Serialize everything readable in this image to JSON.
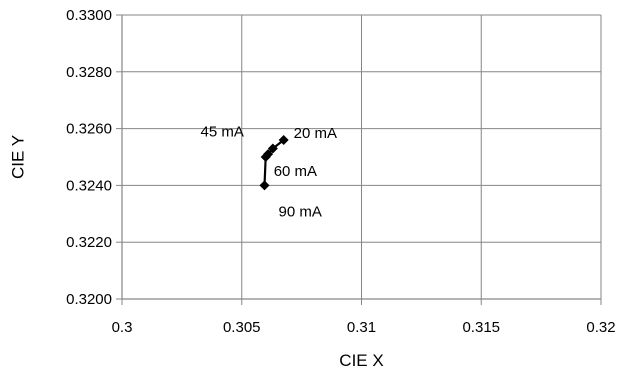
{
  "chart_data": {
    "type": "scatter",
    "title": "",
    "xlabel": "CIE X",
    "ylabel": "CIE Y",
    "xlim": [
      0.3,
      0.32
    ],
    "ylim": [
      0.32,
      0.33
    ],
    "x_ticks": [
      0.3,
      0.305,
      0.31,
      0.315,
      0.32
    ],
    "x_tick_labels": [
      "0.3",
      "0.305",
      "0.31",
      "0.315",
      "0.32"
    ],
    "y_ticks": [
      0.32,
      0.322,
      0.324,
      0.326,
      0.328,
      0.33
    ],
    "y_tick_labels": [
      "0.3200",
      "0.3220",
      "0.3240",
      "0.3260",
      "0.3280",
      "0.3300"
    ],
    "grid": true,
    "legend": "none",
    "series": [
      {
        "marker": "diamond",
        "line": true,
        "color": "#000000",
        "points": [
          {
            "x": 0.30675,
            "y": 0.3256
          },
          {
            "x": 0.3063,
            "y": 0.3253
          },
          {
            "x": 0.3061,
            "y": 0.3251
          },
          {
            "x": 0.306,
            "y": 0.325
          },
          {
            "x": 0.30595,
            "y": 0.324
          }
        ]
      }
    ],
    "annotations": [
      {
        "text": "20 mA",
        "x": 0.30675,
        "y": 0.3256
      },
      {
        "text": "45 mA",
        "x": 0.3063,
        "y": 0.3253
      },
      {
        "text": "60 mA",
        "x": 0.306,
        "y": 0.325
      },
      {
        "text": "90 mA",
        "x": 0.30595,
        "y": 0.324
      }
    ],
    "colors": {
      "grid": "#868686",
      "axis": "#868686",
      "series": "#000000",
      "text": "#000000"
    }
  }
}
